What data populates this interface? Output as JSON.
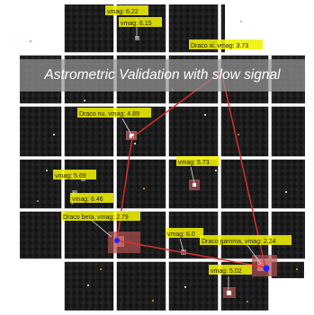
{
  "title": "Astrometric Validation with slow signal",
  "labels": [
    {
      "id": "vmag-622",
      "text": "vmag: 6.22"
    },
    {
      "id": "vmag-615",
      "text": "vmag: 6.15"
    },
    {
      "id": "draco-xi",
      "text": "Draco xi, vmag: 3.73"
    },
    {
      "id": "draco-nu",
      "text": "Draco nu, vmag: 4.89"
    },
    {
      "id": "vmag-573",
      "text": "vmag: 5.73"
    },
    {
      "id": "vmag-569",
      "text": "vmag: 5.69"
    },
    {
      "id": "vmag-646",
      "text": "vmag: 6.46"
    },
    {
      "id": "draco-beta",
      "text": "Draco beta, vmag: 2.79"
    },
    {
      "id": "vmag-60",
      "text": "vmag: 6.0"
    },
    {
      "id": "draco-gamma",
      "text": "Draco gamma, vmag: 2.24"
    },
    {
      "id": "vmag-502",
      "text": "vmag: 5.02"
    }
  ],
  "colors": {
    "sky": "#181818",
    "grid": "#ffffff",
    "label_bg": "#f0f000",
    "line": "#e03030",
    "centroid": "#2222ff"
  }
}
